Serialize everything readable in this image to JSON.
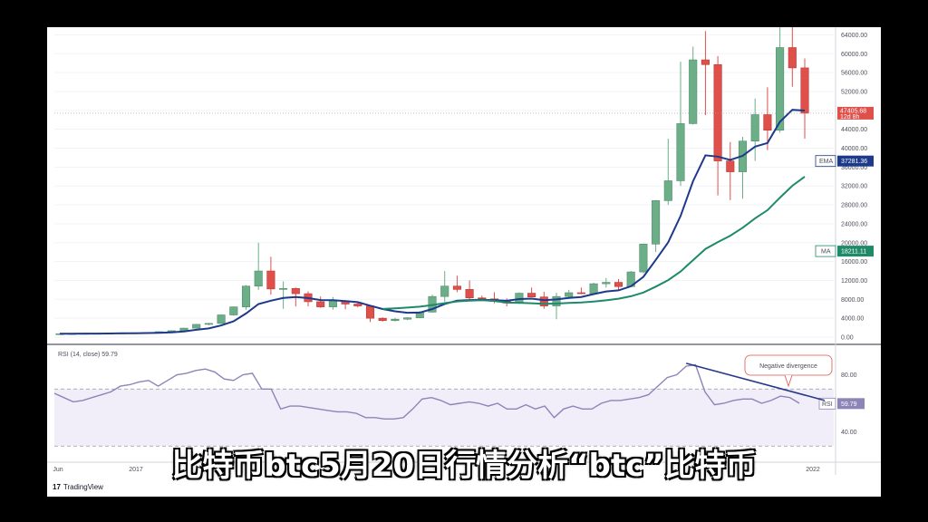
{
  "caption": "比特币btc5月20日行情分析“btc”比特币",
  "logo": {
    "mark": "17",
    "text": "TradingView"
  },
  "colors": {
    "up": "#6cae88",
    "down": "#e0504a",
    "ema": "#1d3a8a",
    "ma": "#1e8a68",
    "rsi": "#8d84b8",
    "divergence": "#2a3a8a"
  },
  "chart_data": [
    {
      "type": "candlestick",
      "ylim": [
        0,
        66000
      ],
      "y_ticks": [
        "0.00",
        "4000.00",
        "8000.00",
        "12000.00",
        "16000.00",
        "20000.00",
        "24000.00",
        "28000.00",
        "32000.00",
        "36000.00",
        "40000.00",
        "44000.00",
        "48000.00",
        "52000.00",
        "56000.00",
        "60000.00",
        "64000.00"
      ],
      "x_ticks": [
        "Jun",
        "2017",
        "2022"
      ],
      "last_price": {
        "value": "47405.68",
        "sub": "12d 8h"
      },
      "candles": [
        [
          700,
          750,
          650,
          720
        ],
        [
          720,
          780,
          700,
          760
        ],
        [
          760,
          800,
          740,
          790
        ],
        [
          790,
          830,
          770,
          810
        ],
        [
          810,
          860,
          790,
          840
        ],
        [
          840,
          900,
          820,
          880
        ],
        [
          880,
          940,
          860,
          920
        ],
        [
          920,
          1000,
          900,
          980
        ],
        [
          980,
          1200,
          960,
          1150
        ],
        [
          1150,
          1400,
          1100,
          1350
        ],
        [
          1350,
          2000,
          1300,
          1900
        ],
        [
          1900,
          2800,
          1800,
          2700
        ],
        [
          2700,
          3000,
          2500,
          2900
        ],
        [
          2900,
          4800,
          2800,
          4700
        ],
        [
          4700,
          6500,
          4500,
          6400
        ],
        [
          6400,
          11000,
          5800,
          10800
        ],
        [
          10800,
          20000,
          10000,
          14000
        ],
        [
          14000,
          17000,
          9000,
          10200
        ],
        [
          10200,
          11800,
          6000,
          10300
        ],
        [
          10300,
          10500,
          6500,
          9200
        ],
        [
          9200,
          9700,
          6500,
          7500
        ],
        [
          7500,
          8600,
          6200,
          6400
        ],
        [
          6400,
          8500,
          5800,
          7700
        ],
        [
          7700,
          7800,
          5900,
          7000
        ],
        [
          7000,
          7400,
          6300,
          6600
        ],
        [
          6600,
          6700,
          3200,
          4000
        ],
        [
          4000,
          4200,
          3300,
          3500
        ],
        [
          3500,
          4100,
          3300,
          3800
        ],
        [
          3800,
          4200,
          3600,
          4100
        ],
        [
          4100,
          5500,
          4000,
          5300
        ],
        [
          5300,
          9000,
          5200,
          8600
        ],
        [
          8600,
          14000,
          7500,
          10800
        ],
        [
          10800,
          13000,
          9500,
          10100
        ],
        [
          10100,
          12000,
          8000,
          8300
        ],
        [
          8300,
          8800,
          7800,
          8100
        ],
        [
          8100,
          9500,
          7200,
          7600
        ],
        [
          7600,
          8200,
          6500,
          7200
        ],
        [
          7200,
          9500,
          7000,
          9300
        ],
        [
          9300,
          10500,
          8600,
          8500
        ],
        [
          8500,
          9600,
          6000,
          6600
        ],
        [
          6600,
          9400,
          3800,
          8600
        ],
        [
          8600,
          10000,
          8200,
          9400
        ],
        [
          9400,
          10500,
          9100,
          9200
        ],
        [
          9200,
          11500,
          9000,
          11300
        ],
        [
          11300,
          12500,
          10500,
          11600
        ],
        [
          11600,
          12300,
          9900,
          10700
        ],
        [
          10700,
          14000,
          10600,
          13800
        ],
        [
          13800,
          19800,
          13500,
          19700
        ],
        [
          19700,
          29000,
          18000,
          28900
        ],
        [
          28900,
          42000,
          28000,
          33100
        ],
        [
          33100,
          58300,
          32000,
          45200
        ],
        [
          45200,
          61500,
          45000,
          58700
        ],
        [
          58700,
          64800,
          47000,
          57700
        ],
        [
          57700,
          59500,
          30000,
          37300
        ],
        [
          37300,
          41300,
          29000,
          35000
        ],
        [
          35000,
          42400,
          29300,
          41500
        ],
        [
          41500,
          50500,
          37300,
          47100
        ],
        [
          47100,
          52900,
          39600,
          43800
        ],
        [
          43800,
          66900,
          43300,
          61300
        ],
        [
          61300,
          69000,
          53000,
          57000
        ],
        [
          57000,
          59000,
          42000,
          47405
        ]
      ],
      "ema": {
        "label": "EMA",
        "value": "37281.36"
      },
      "ma": {
        "label": "MA",
        "value": "18211.11"
      }
    },
    {
      "type": "line",
      "title": "RSI (14, close)",
      "value": "59.79",
      "ylim": [
        20,
        100
      ],
      "y_ticks": [
        "40.00",
        "80.00"
      ],
      "bands": [
        70,
        30
      ],
      "series_label": "RSI",
      "values": [
        67,
        64,
        61,
        62,
        64,
        66,
        68,
        72,
        73,
        75,
        76,
        72,
        76,
        80,
        81,
        83,
        84,
        82,
        77,
        76,
        80,
        81,
        70,
        70,
        56,
        58,
        58,
        57,
        56,
        55,
        54,
        54,
        53,
        50,
        50,
        49,
        49,
        50,
        56,
        63,
        64,
        62,
        59,
        60,
        61,
        60,
        58,
        60,
        56,
        56,
        59,
        56,
        58,
        50,
        56,
        58,
        56,
        56,
        60,
        62,
        62,
        63,
        64,
        66,
        72,
        78,
        80,
        86,
        87,
        68,
        59,
        60,
        62,
        63,
        63,
        60,
        62,
        65,
        64,
        60
      ],
      "annotation": "Negative divergence"
    }
  ]
}
